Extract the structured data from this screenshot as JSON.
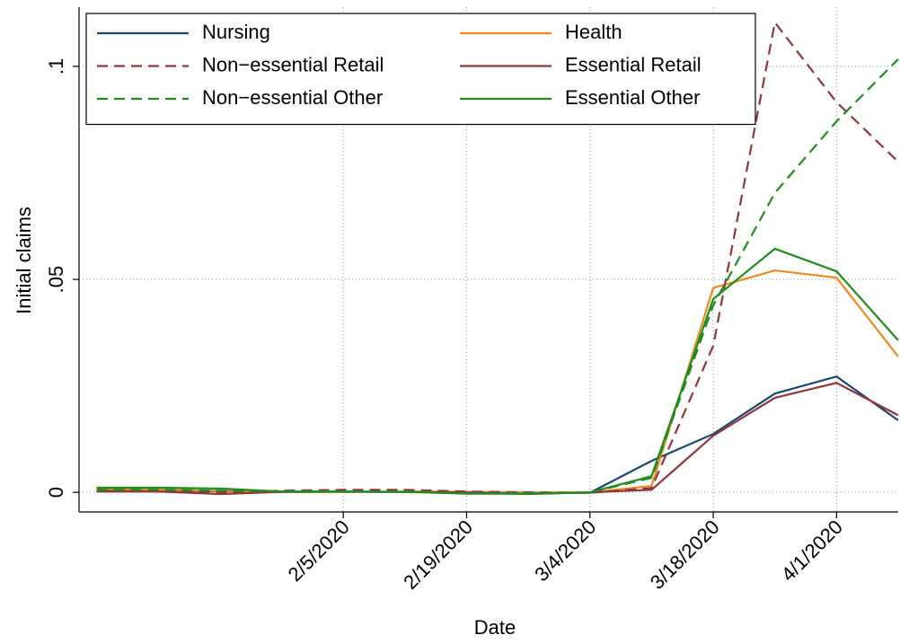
{
  "chart_data": {
    "type": "line",
    "x_label": "Date",
    "y_label": "Initial claims",
    "x": [
      "1/8/2020",
      "1/15/2020",
      "1/22/2020",
      "1/29/2020",
      "2/5/2020",
      "2/12/2020",
      "2/19/2020",
      "2/26/2020",
      "3/4/2020",
      "3/11/2020",
      "3/18/2020",
      "3/25/2020",
      "4/1/2020",
      "4/8/2020"
    ],
    "xlim": [
      "1/6/2020",
      "4/8/2020"
    ],
    "xticks": [
      "2/5/2020",
      "2/19/2020",
      "3/4/2020",
      "3/18/2020",
      "4/1/2020"
    ],
    "ylim": [
      -0.0046,
      0.1139
    ],
    "yticks": [
      0,
      {
        "value": 0.05,
        "label": ".05"
      },
      {
        "value": 0.1,
        "label": ".1"
      }
    ],
    "grid": true,
    "legend": "top-left",
    "series": [
      {
        "name": "Nursing",
        "color": "#1a476f",
        "dash": false,
        "values": [
          0.0003,
          0.0004,
          0.0003,
          0.0001,
          0.0001,
          0.0001,
          0.0,
          -0.0001,
          -0.0001,
          0.0074,
          0.0137,
          0.0232,
          0.0272,
          0.0169
        ]
      },
      {
        "name": "Health",
        "color": "#f2891c",
        "dash": false,
        "values": [
          0.0008,
          0.0006,
          0.0004,
          0.0001,
          0.0001,
          0.0002,
          0.0001,
          0.0,
          0.0,
          0.0015,
          0.048,
          0.0521,
          0.0504,
          0.0319
        ]
      },
      {
        "name": "Non−essential Retail",
        "color": "#90353b",
        "dash": true,
        "values": [
          0.0004,
          0.0003,
          -0.0001,
          0.0004,
          0.0006,
          0.0006,
          0.0002,
          0.0,
          -0.0001,
          0.001,
          0.0344,
          0.1103,
          0.0916,
          0.0776
        ]
      },
      {
        "name": "Essential Retail",
        "color": "#90353b",
        "dash": false,
        "values": [
          0.0002,
          0.0002,
          -0.0004,
          0.0001,
          0.0002,
          0.0001,
          0.0,
          -0.0004,
          0.0,
          0.0006,
          0.0133,
          0.0222,
          0.0257,
          0.0181
        ]
      },
      {
        "name": "Non−essential Other",
        "color": "#1e8c1e",
        "dash": true,
        "values": [
          0.0006,
          0.0006,
          0.0004,
          0.0002,
          0.0002,
          0.0002,
          -0.0002,
          -0.0002,
          0.0,
          0.0034,
          0.0439,
          0.0703,
          0.0871,
          0.1017
        ]
      },
      {
        "name": "Essential Other",
        "color": "#1e8c1e",
        "dash": false,
        "values": [
          0.0011,
          0.0011,
          0.0009,
          0.0002,
          0.0002,
          0.0001,
          -0.0003,
          -0.0003,
          0.0,
          0.0038,
          0.0454,
          0.0572,
          0.0519,
          0.0357
        ]
      }
    ]
  }
}
